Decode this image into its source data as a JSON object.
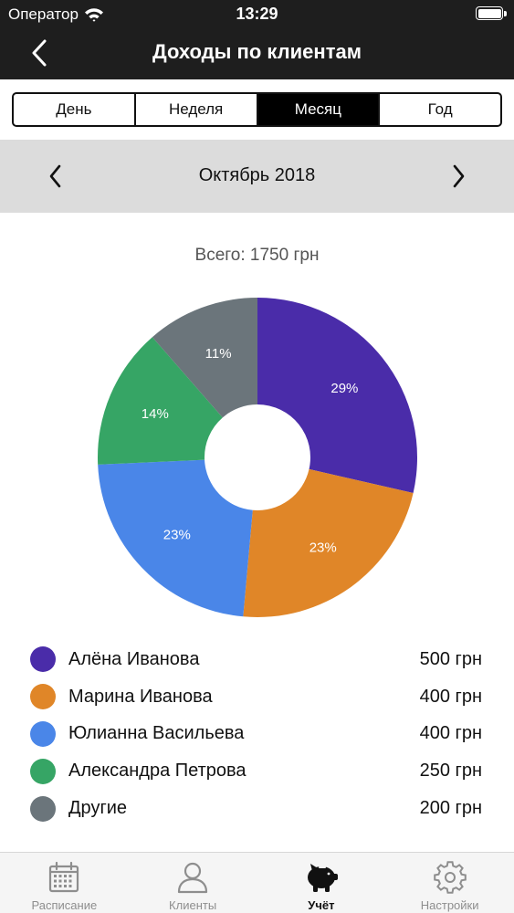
{
  "status_bar": {
    "carrier": "Оператор",
    "time": "13:29"
  },
  "header": {
    "title": "Доходы по клиентам"
  },
  "segments": [
    {
      "label": "День",
      "active": false
    },
    {
      "label": "Неделя",
      "active": false
    },
    {
      "label": "Месяц",
      "active": true
    },
    {
      "label": "Год",
      "active": false
    }
  ],
  "period": {
    "label": "Октябрь 2018"
  },
  "total": {
    "label": "Всего: 1750 грн"
  },
  "clients": [
    {
      "name": "Алёна Иванова",
      "amount": "500 грн",
      "color": "#4a2ca9"
    },
    {
      "name": "Марина Иванова",
      "amount": "400 грн",
      "color": "#e08628"
    },
    {
      "name": "Юлианна Васильева",
      "amount": "400 грн",
      "color": "#4a86e8"
    },
    {
      "name": "Александра Петрова",
      "amount": "250 грн",
      "color": "#36a565"
    },
    {
      "name": "Другие",
      "amount": "200 грн",
      "color": "#6b757b"
    }
  ],
  "chart_data": {
    "type": "pie",
    "title": "",
    "categories": [
      "Алёна Иванова",
      "Марина Иванова",
      "Юлианна Васильева",
      "Александра Петрова",
      "Другие"
    ],
    "values": [
      500,
      400,
      400,
      250,
      200
    ],
    "labels": [
      "29%",
      "23%",
      "23%",
      "14%",
      "11%"
    ],
    "colors": [
      "#4a2ca9",
      "#e08628",
      "#4a86e8",
      "#36a565",
      "#6b757b"
    ],
    "start": "top",
    "direction": "clockwise",
    "hole": true
  },
  "tabs": [
    {
      "label": "Расписание",
      "icon": "calendar-icon",
      "active": false
    },
    {
      "label": "Клиенты",
      "icon": "person-icon",
      "active": false
    },
    {
      "label": "Учёт",
      "icon": "piggy-bank-icon",
      "active": true
    },
    {
      "label": "Настройки",
      "icon": "gear-icon",
      "active": false
    }
  ]
}
